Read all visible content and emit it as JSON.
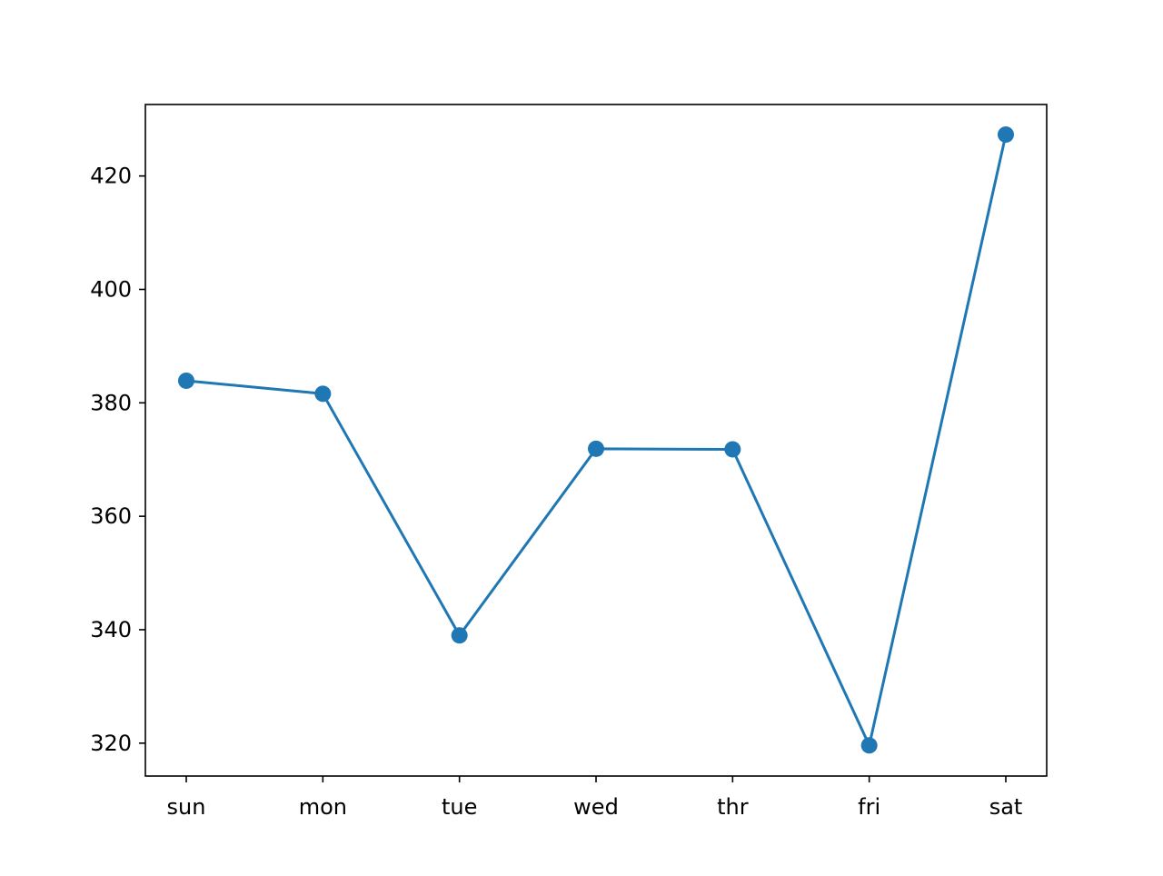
{
  "chart_data": {
    "type": "line",
    "title": "",
    "xlabel": "",
    "ylabel": "",
    "categories": [
      "sun",
      "mon",
      "tue",
      "wed",
      "thr",
      "fri",
      "sat"
    ],
    "series": [
      {
        "values": [
          383.9,
          381.6,
          339.0,
          371.9,
          371.8,
          319.6,
          427.3
        ],
        "color": "#1f77b4",
        "marker": "circle"
      }
    ],
    "ylim": [
      314.2,
      432.6
    ],
    "yticks": [
      320,
      340,
      360,
      380,
      400,
      420
    ],
    "grid": false,
    "legend": "none"
  }
}
